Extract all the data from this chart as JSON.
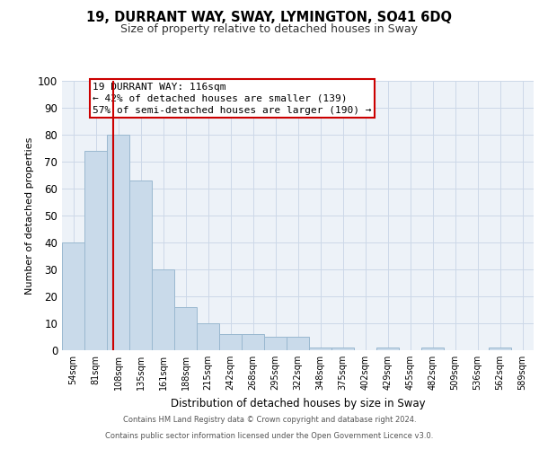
{
  "title1": "19, DURRANT WAY, SWAY, LYMINGTON, SO41 6DQ",
  "title2": "Size of property relative to detached houses in Sway",
  "xlabel": "Distribution of detached houses by size in Sway",
  "ylabel": "Number of detached properties",
  "bar_labels": [
    "54sqm",
    "81sqm",
    "108sqm",
    "135sqm",
    "161sqm",
    "188sqm",
    "215sqm",
    "242sqm",
    "268sqm",
    "295sqm",
    "322sqm",
    "348sqm",
    "375sqm",
    "402sqm",
    "429sqm",
    "455sqm",
    "482sqm",
    "509sqm",
    "536sqm",
    "562sqm",
    "589sqm"
  ],
  "bar_values": [
    40,
    74,
    80,
    63,
    30,
    16,
    10,
    6,
    6,
    5,
    5,
    1,
    1,
    0,
    1,
    0,
    1,
    0,
    0,
    1,
    0
  ],
  "bar_color": "#c9daea",
  "bar_edgecolor": "#9ab8d0",
  "grid_color": "#ccd8e8",
  "background_color": "#edf2f8",
  "red_line_color": "#cc0000",
  "annotation_text": "19 DURRANT WAY: 116sqm\n← 42% of detached houses are smaller (139)\n57% of semi-detached houses are larger (190) →",
  "annotation_box_color": "#ffffff",
  "annotation_box_edgecolor": "#cc0000",
  "footer_text1": "Contains HM Land Registry data © Crown copyright and database right 2024.",
  "footer_text2": "Contains public sector information licensed under the Open Government Licence v3.0.",
  "ylim": [
    0,
    100
  ],
  "yticks": [
    0,
    10,
    20,
    30,
    40,
    50,
    60,
    70,
    80,
    90,
    100
  ]
}
